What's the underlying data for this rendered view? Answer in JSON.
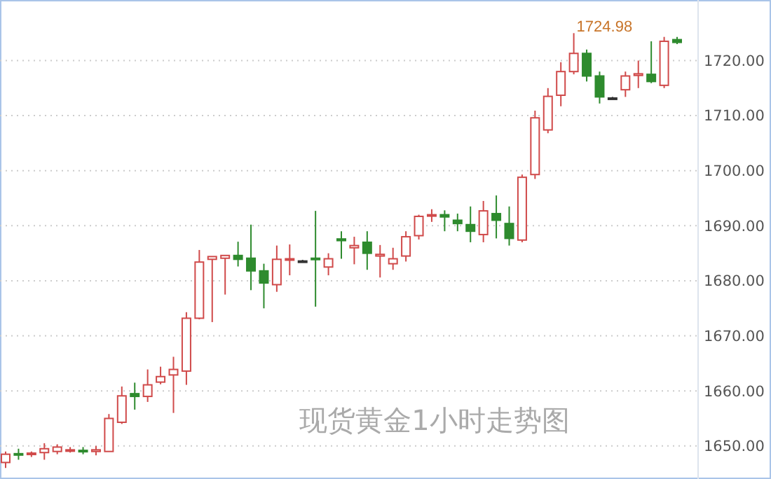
{
  "chart_data": {
    "type": "candlestick",
    "title": "现货黄金1小时走势图",
    "categories": [
      null,
      null,
      null,
      null,
      null,
      null,
      null,
      null,
      null,
      null,
      null,
      null,
      null,
      null,
      null,
      null,
      null,
      null,
      null,
      null,
      null,
      null,
      null,
      null,
      null,
      null,
      null,
      null,
      null,
      null,
      null,
      null,
      null,
      null,
      null,
      null,
      null,
      null,
      null,
      null,
      null,
      null,
      null,
      null,
      null,
      null,
      null,
      null,
      null,
      null,
      null,
      null,
      null
    ],
    "ohlc": [
      [
        1647,
        1649,
        1646,
        1648.5
      ],
      [
        1648.6,
        1649.5,
        1647.5,
        1648.4
      ],
      [
        1648.5,
        1649,
        1648,
        1648.7
      ],
      [
        1648.8,
        1650.5,
        1647.5,
        1649.5
      ],
      [
        1649,
        1650.3,
        1648.5,
        1649.8
      ],
      [
        1649.2,
        1649.8,
        1648.8,
        1649.3
      ],
      [
        1649.2,
        1649.8,
        1648.5,
        1649
      ],
      [
        1649,
        1650,
        1648.3,
        1649.3
      ],
      [
        1649,
        1655.8,
        1649,
        1655
      ],
      [
        1654.3,
        1660.8,
        1654,
        1659.1
      ],
      [
        1659.5,
        1661.5,
        1656.6,
        1659
      ],
      [
        1659,
        1663.9,
        1658,
        1661.1
      ],
      [
        1661.6,
        1664.4,
        1661.2,
        1662.6
      ],
      [
        1662.9,
        1666.2,
        1656,
        1663.9
      ],
      [
        1663.6,
        1674.3,
        1661.1,
        1673.2
      ],
      [
        1673.2,
        1685.6,
        1673,
        1683.4
      ],
      [
        1683.9,
        1684.4,
        1672.5,
        1684.4
      ],
      [
        1684.1,
        1684.6,
        1677.5,
        1684.6
      ],
      [
        1684.6,
        1687.1,
        1682.6,
        1683.9
      ],
      [
        1684.1,
        1690.2,
        1678.3,
        1681.8
      ],
      [
        1681.8,
        1683.1,
        1675,
        1679.6
      ],
      [
        1679.3,
        1686.4,
        1678,
        1683.9
      ],
      [
        1683.8,
        1686.6,
        1681,
        1684
      ],
      [
        1683.6,
        1683.8,
        1683.4,
        1683.6
      ],
      [
        1684.1,
        1692.7,
        1675.3,
        1683.9
      ],
      [
        1682.5,
        1685,
        1681,
        1684
      ],
      [
        1687.6,
        1689,
        1684,
        1687.3
      ],
      [
        1686,
        1688,
        1683,
        1686.4
      ],
      [
        1687,
        1689,
        1682,
        1685
      ],
      [
        1684.5,
        1686.5,
        1680.6,
        1684.8
      ],
      [
        1683.1,
        1686,
        1682,
        1684
      ],
      [
        1684.5,
        1689,
        1683.5,
        1688
      ],
      [
        1688.2,
        1692,
        1687.5,
        1691.7
      ],
      [
        1691.8,
        1693,
        1690.7,
        1692
      ],
      [
        1692,
        1692.8,
        1689,
        1691.6
      ],
      [
        1691,
        1692.2,
        1689,
        1690.4
      ],
      [
        1690.2,
        1693.5,
        1687,
        1689
      ],
      [
        1688.4,
        1694.5,
        1687,
        1692.7
      ],
      [
        1692.2,
        1695.5,
        1687.7,
        1691
      ],
      [
        1690.4,
        1693.5,
        1686.4,
        1687.7
      ],
      [
        1687.4,
        1699.3,
        1687,
        1698.8
      ],
      [
        1699.3,
        1710.9,
        1698.5,
        1709.6
      ],
      [
        1707.4,
        1715,
        1706.8,
        1713.5
      ],
      [
        1713.7,
        1719.7,
        1711.7,
        1718
      ],
      [
        1718,
        1724.98,
        1717.5,
        1721.3
      ],
      [
        1721.3,
        1722,
        1716.2,
        1717.2
      ],
      [
        1717.2,
        1718,
        1712.2,
        1713.4
      ],
      [
        1713.2,
        1713.4,
        1713,
        1713.2
      ],
      [
        1714.7,
        1718,
        1713.4,
        1717.2
      ],
      [
        1717.3,
        1720,
        1715,
        1717.6
      ],
      [
        1717.5,
        1723.5,
        1715.9,
        1716.2
      ],
      [
        1715.5,
        1724.3,
        1715,
        1723.5
      ],
      [
        1723.8,
        1724.3,
        1723,
        1723.3
      ]
    ],
    "colors": [
      "#d04a4a",
      "#2e8b2e",
      "#d04a4a",
      "#d04a4a",
      "#d04a4a",
      "#d04a4a",
      "#2e8b2e",
      "#d04a4a",
      "#d04a4a",
      "#d04a4a",
      "#2e8b2e",
      "#d04a4a",
      "#d04a4a",
      "#d04a4a",
      "#d04a4a",
      "#d04a4a",
      "#d04a4a",
      "#d04a4a",
      "#2e8b2e",
      "#2e8b2e",
      "#2e8b2e",
      "#d04a4a",
      "#d04a4a",
      "#333333",
      "#2e8b2e",
      "#d04a4a",
      "#2e8b2e",
      "#d04a4a",
      "#2e8b2e",
      "#d04a4a",
      "#d04a4a",
      "#d04a4a",
      "#d04a4a",
      "#d04a4a",
      "#2e8b2e",
      "#2e8b2e",
      "#2e8b2e",
      "#d04a4a",
      "#2e8b2e",
      "#2e8b2e",
      "#d04a4a",
      "#d04a4a",
      "#d04a4a",
      "#d04a4a",
      "#d04a4a",
      "#2e8b2e",
      "#2e8b2e",
      "#333333",
      "#d04a4a",
      "#d04a4a",
      "#2e8b2e",
      "#d04a4a",
      "#2e8b2e"
    ],
    "ylim": [
      1644,
      1731
    ],
    "yticks": [
      {
        "value": 1650,
        "label": "1650.00"
      },
      {
        "value": 1660,
        "label": "1660.00"
      },
      {
        "value": 1670,
        "label": "1670.00"
      },
      {
        "value": 1680,
        "label": "1680.00"
      },
      {
        "value": 1690,
        "label": "1690.00"
      },
      {
        "value": 1700,
        "label": "1700.00"
      },
      {
        "value": 1710,
        "label": "1710.00"
      },
      {
        "value": 1720,
        "label": "1720.00"
      }
    ],
    "grid": "y",
    "annotations": [
      "1724.98"
    ]
  }
}
